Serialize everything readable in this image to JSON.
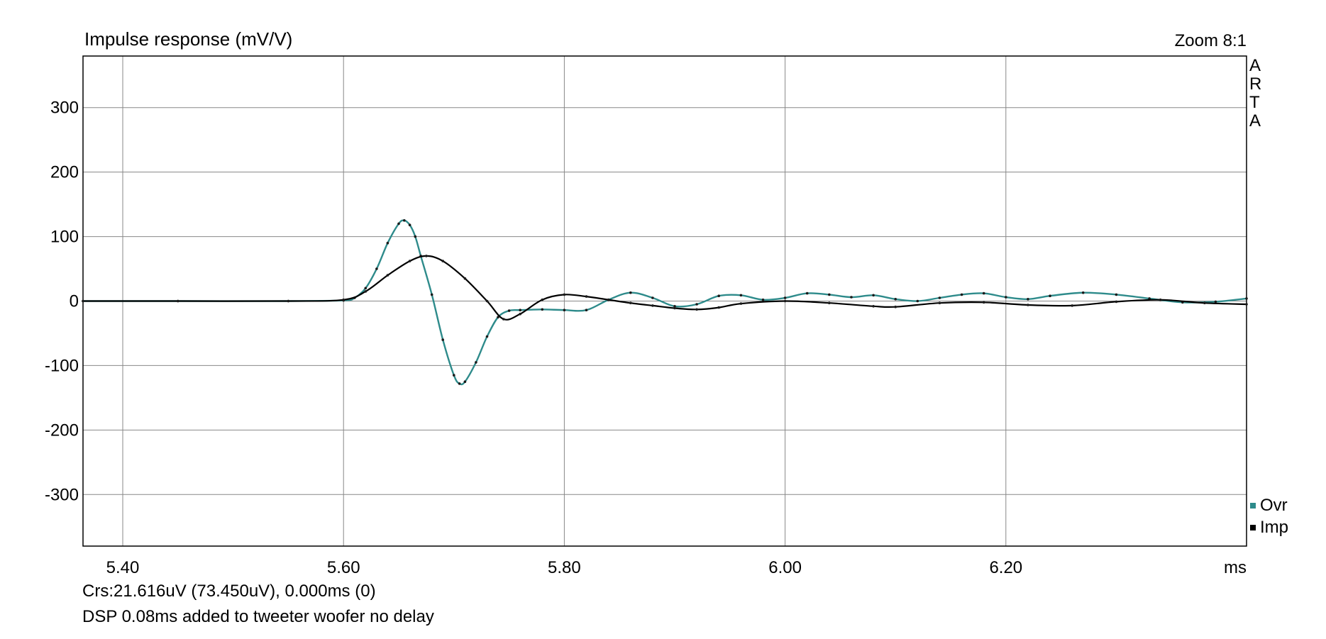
{
  "header": {
    "title": "Impulse response (mV/V)",
    "zoom": "Zoom 8:1",
    "brand": [
      "A",
      "R",
      "T",
      "A"
    ]
  },
  "footer": {
    "cursor": "Crs:21.616uV (73.450uV), 0.000ms (0)",
    "note": "DSP 0.08ms added to  tweeter woofer no delay"
  },
  "chart_data": {
    "type": "line",
    "title": "Impulse response (mV/V)",
    "xlabel": "ms",
    "ylabel": "",
    "xlim": [
      5.364,
      6.418
    ],
    "ylim": [
      -380,
      380
    ],
    "grid": true,
    "legend_position": "bottom-right",
    "x_ticks": [
      5.4,
      5.6,
      5.8,
      6.0,
      6.2
    ],
    "x_tick_labels": [
      "5.40",
      "5.60",
      "5.80",
      "6.00",
      "6.20"
    ],
    "y_ticks": [
      300,
      200,
      100,
      0,
      -100,
      -200,
      -300
    ],
    "y_tick_labels": [
      "300",
      "200",
      "100",
      "0",
      "-100",
      "-200",
      "-300"
    ],
    "series": [
      {
        "name": "Ovr",
        "color": "#2e8b8b",
        "x": [
          5.364,
          5.45,
          5.55,
          5.6,
          5.61,
          5.62,
          5.63,
          5.64,
          5.65,
          5.655,
          5.66,
          5.665,
          5.67,
          5.68,
          5.69,
          5.7,
          5.705,
          5.71,
          5.72,
          5.73,
          5.74,
          5.75,
          5.76,
          5.78,
          5.8,
          5.82,
          5.84,
          5.86,
          5.88,
          5.9,
          5.92,
          5.94,
          5.96,
          5.98,
          6.0,
          6.02,
          6.04,
          6.06,
          6.08,
          6.1,
          6.12,
          6.14,
          6.16,
          6.18,
          6.2,
          6.22,
          6.24,
          6.27,
          6.3,
          6.33,
          6.36,
          6.39,
          6.418
        ],
        "y": [
          0,
          0,
          0,
          1,
          5,
          20,
          50,
          90,
          120,
          125,
          118,
          100,
          70,
          10,
          -60,
          -115,
          -128,
          -125,
          -95,
          -55,
          -25,
          -15,
          -14,
          -13,
          -14,
          -14,
          2,
          13,
          5,
          -8,
          -5,
          8,
          9,
          2,
          5,
          12,
          10,
          6,
          9,
          3,
          0,
          5,
          10,
          12,
          6,
          3,
          8,
          13,
          10,
          4,
          -2,
          -1,
          4
        ]
      },
      {
        "name": "Imp",
        "color": "#000000",
        "x": [
          5.364,
          5.45,
          5.55,
          5.6,
          5.62,
          5.64,
          5.66,
          5.675,
          5.69,
          5.71,
          5.73,
          5.745,
          5.76,
          5.78,
          5.8,
          5.82,
          5.84,
          5.86,
          5.88,
          5.9,
          5.92,
          5.94,
          5.96,
          6.0,
          6.04,
          6.08,
          6.1,
          6.14,
          6.18,
          6.22,
          6.26,
          6.3,
          6.34,
          6.38,
          6.418
        ],
        "y": [
          0,
          0,
          0,
          2,
          15,
          40,
          62,
          70,
          62,
          35,
          0,
          -28,
          -20,
          2,
          10,
          7,
          2,
          -3,
          -7,
          -11,
          -13,
          -10,
          -4,
          0,
          -3,
          -8,
          -9,
          -3,
          -2,
          -6,
          -7,
          -1,
          2,
          -3,
          -5
        ]
      }
    ]
  }
}
